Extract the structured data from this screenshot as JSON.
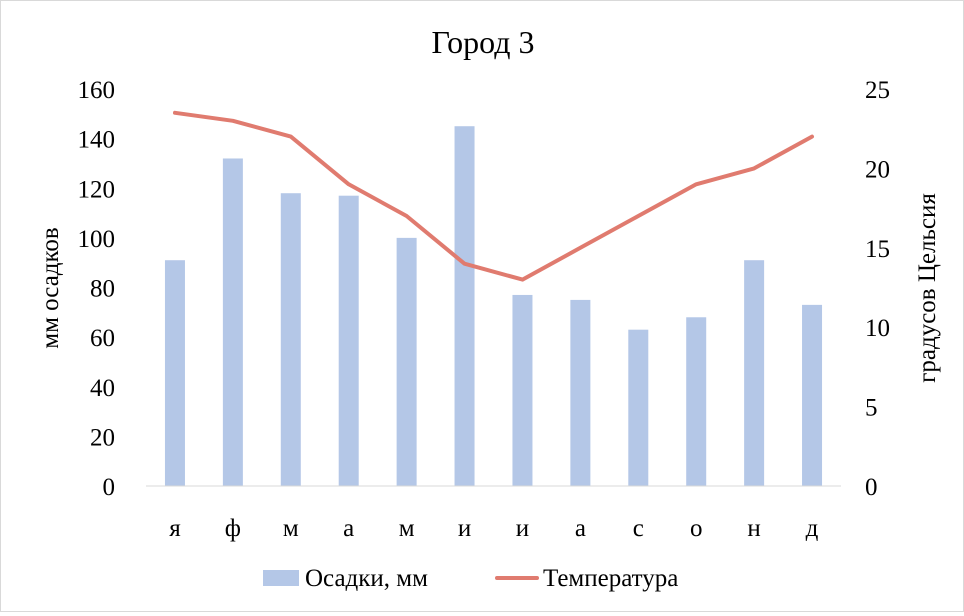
{
  "chart_data": {
    "type": "bar+line",
    "title": "Город 3",
    "categories": [
      "я",
      "ф",
      "м",
      "а",
      "м",
      "и",
      "и",
      "а",
      "с",
      "о",
      "н",
      "д"
    ],
    "series": [
      {
        "name": "Осадки, мм",
        "type": "bar",
        "axis": "left",
        "color": "#b4c7e7",
        "values": [
          91,
          132,
          118,
          117,
          100,
          145,
          77,
          75,
          63,
          68,
          91,
          73
        ]
      },
      {
        "name": "Температура",
        "type": "line",
        "axis": "right",
        "color": "#e07b6f",
        "values": [
          23.5,
          23,
          22,
          19,
          17,
          14,
          13,
          15,
          17,
          19,
          20,
          22
        ]
      }
    ],
    "y_left": {
      "label": "мм осадков",
      "range": [
        0,
        160
      ],
      "ticks": [
        0,
        20,
        40,
        60,
        80,
        100,
        120,
        140,
        160
      ]
    },
    "y_right": {
      "label": "градусов Цельсия",
      "range": [
        0,
        25
      ],
      "ticks": [
        0,
        5,
        10,
        15,
        20,
        25
      ]
    },
    "grid": false,
    "legend_position": "bottom"
  }
}
